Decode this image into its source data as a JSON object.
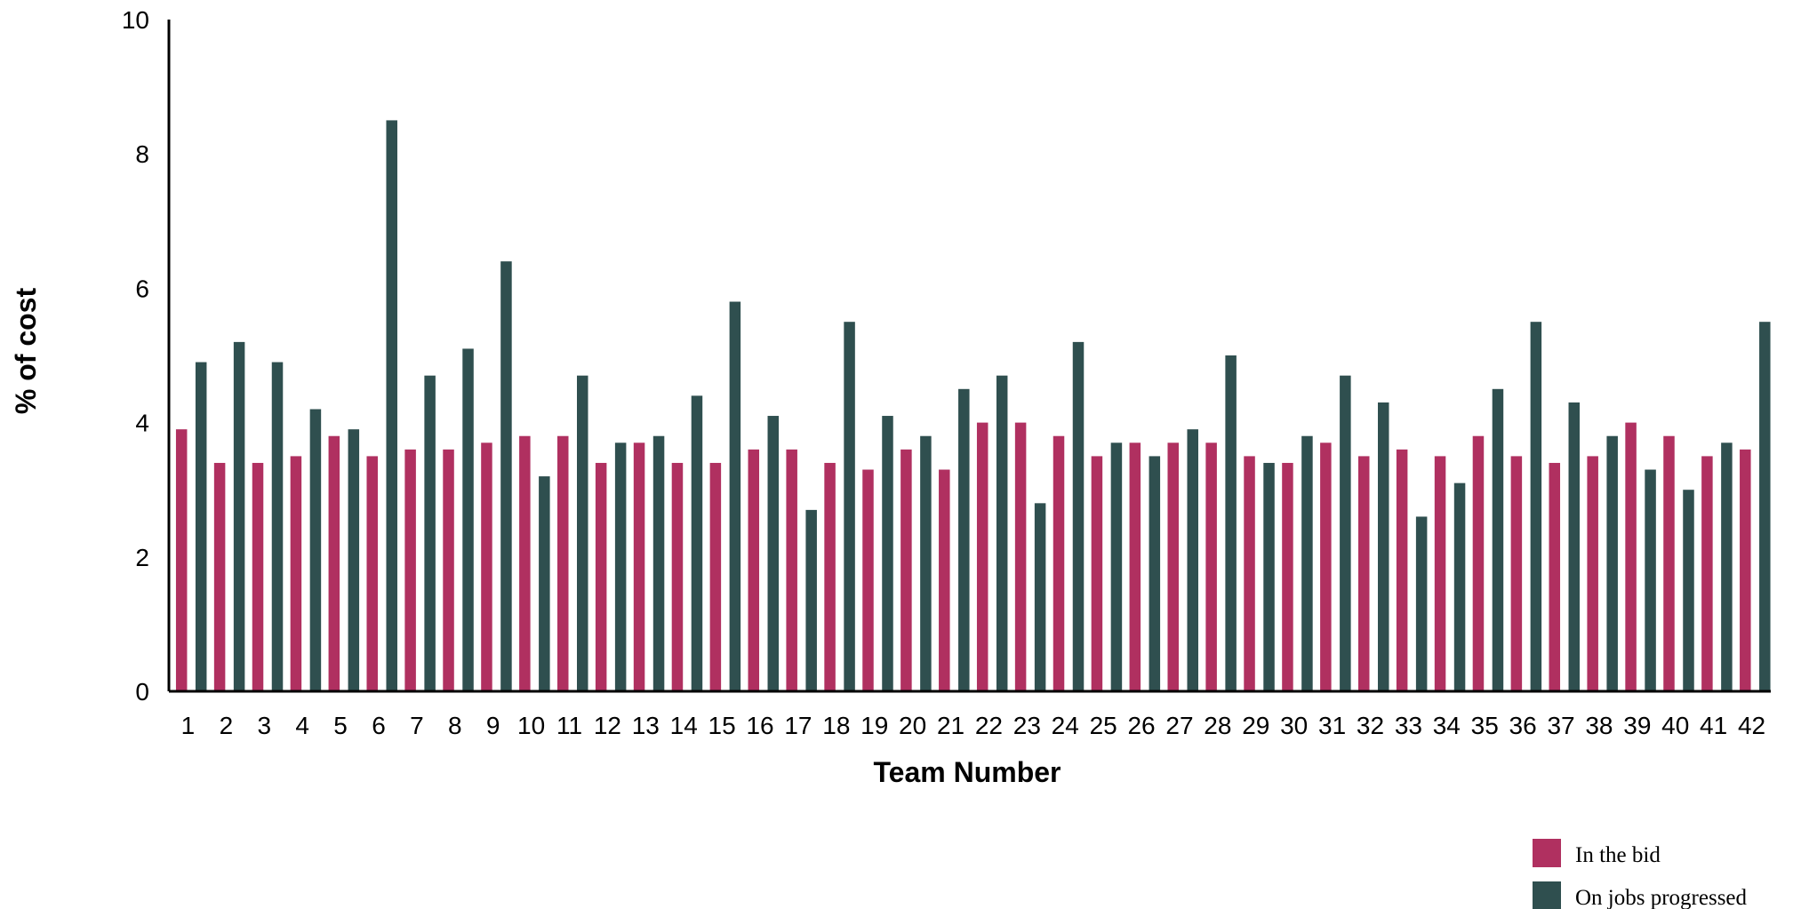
{
  "chart_data": {
    "type": "bar",
    "xlabel": "Team Number",
    "ylabel": "% of cost",
    "ylim": [
      0,
      10
    ],
    "yticks": [
      0,
      2,
      4,
      6,
      8,
      10
    ],
    "grid": false,
    "legend_position": "bottom-right",
    "categories": [
      "1",
      "2",
      "3",
      "4",
      "5",
      "6",
      "7",
      "8",
      "9",
      "10",
      "11",
      "12",
      "13",
      "14",
      "15",
      "16",
      "17",
      "18",
      "19",
      "20",
      "21",
      "22",
      "23",
      "24",
      "25",
      "26",
      "27",
      "28",
      "29",
      "30",
      "31",
      "32",
      "33",
      "34",
      "35",
      "36",
      "37",
      "38",
      "39",
      "40",
      "41",
      "42"
    ],
    "series": [
      {
        "name": "In the bid",
        "color": "#b03060",
        "values": [
          3.9,
          3.4,
          3.4,
          3.5,
          3.8,
          3.5,
          3.6,
          3.6,
          3.7,
          3.8,
          3.8,
          3.4,
          3.7,
          3.4,
          3.4,
          3.6,
          3.6,
          3.4,
          3.3,
          3.6,
          3.3,
          4.0,
          4.0,
          3.8,
          3.5,
          3.7,
          3.7,
          3.7,
          3.5,
          3.4,
          3.7,
          3.5,
          3.6,
          3.5,
          3.8,
          3.5,
          3.4,
          3.5,
          4.0,
          3.8,
          3.5,
          3.6
        ]
      },
      {
        "name": "On jobs progressed",
        "color": "#2f4f4f",
        "values": [
          4.9,
          5.2,
          4.9,
          4.2,
          3.9,
          8.5,
          4.7,
          5.1,
          6.4,
          3.2,
          4.7,
          3.7,
          3.8,
          4.4,
          5.8,
          4.1,
          2.7,
          5.5,
          4.1,
          3.8,
          4.5,
          4.7,
          2.8,
          5.2,
          3.7,
          3.5,
          3.9,
          5.0,
          3.4,
          3.8,
          4.7,
          4.3,
          2.6,
          3.1,
          4.5,
          5.5,
          4.3,
          3.8,
          3.3,
          3.0,
          3.7,
          5.5
        ]
      }
    ]
  }
}
